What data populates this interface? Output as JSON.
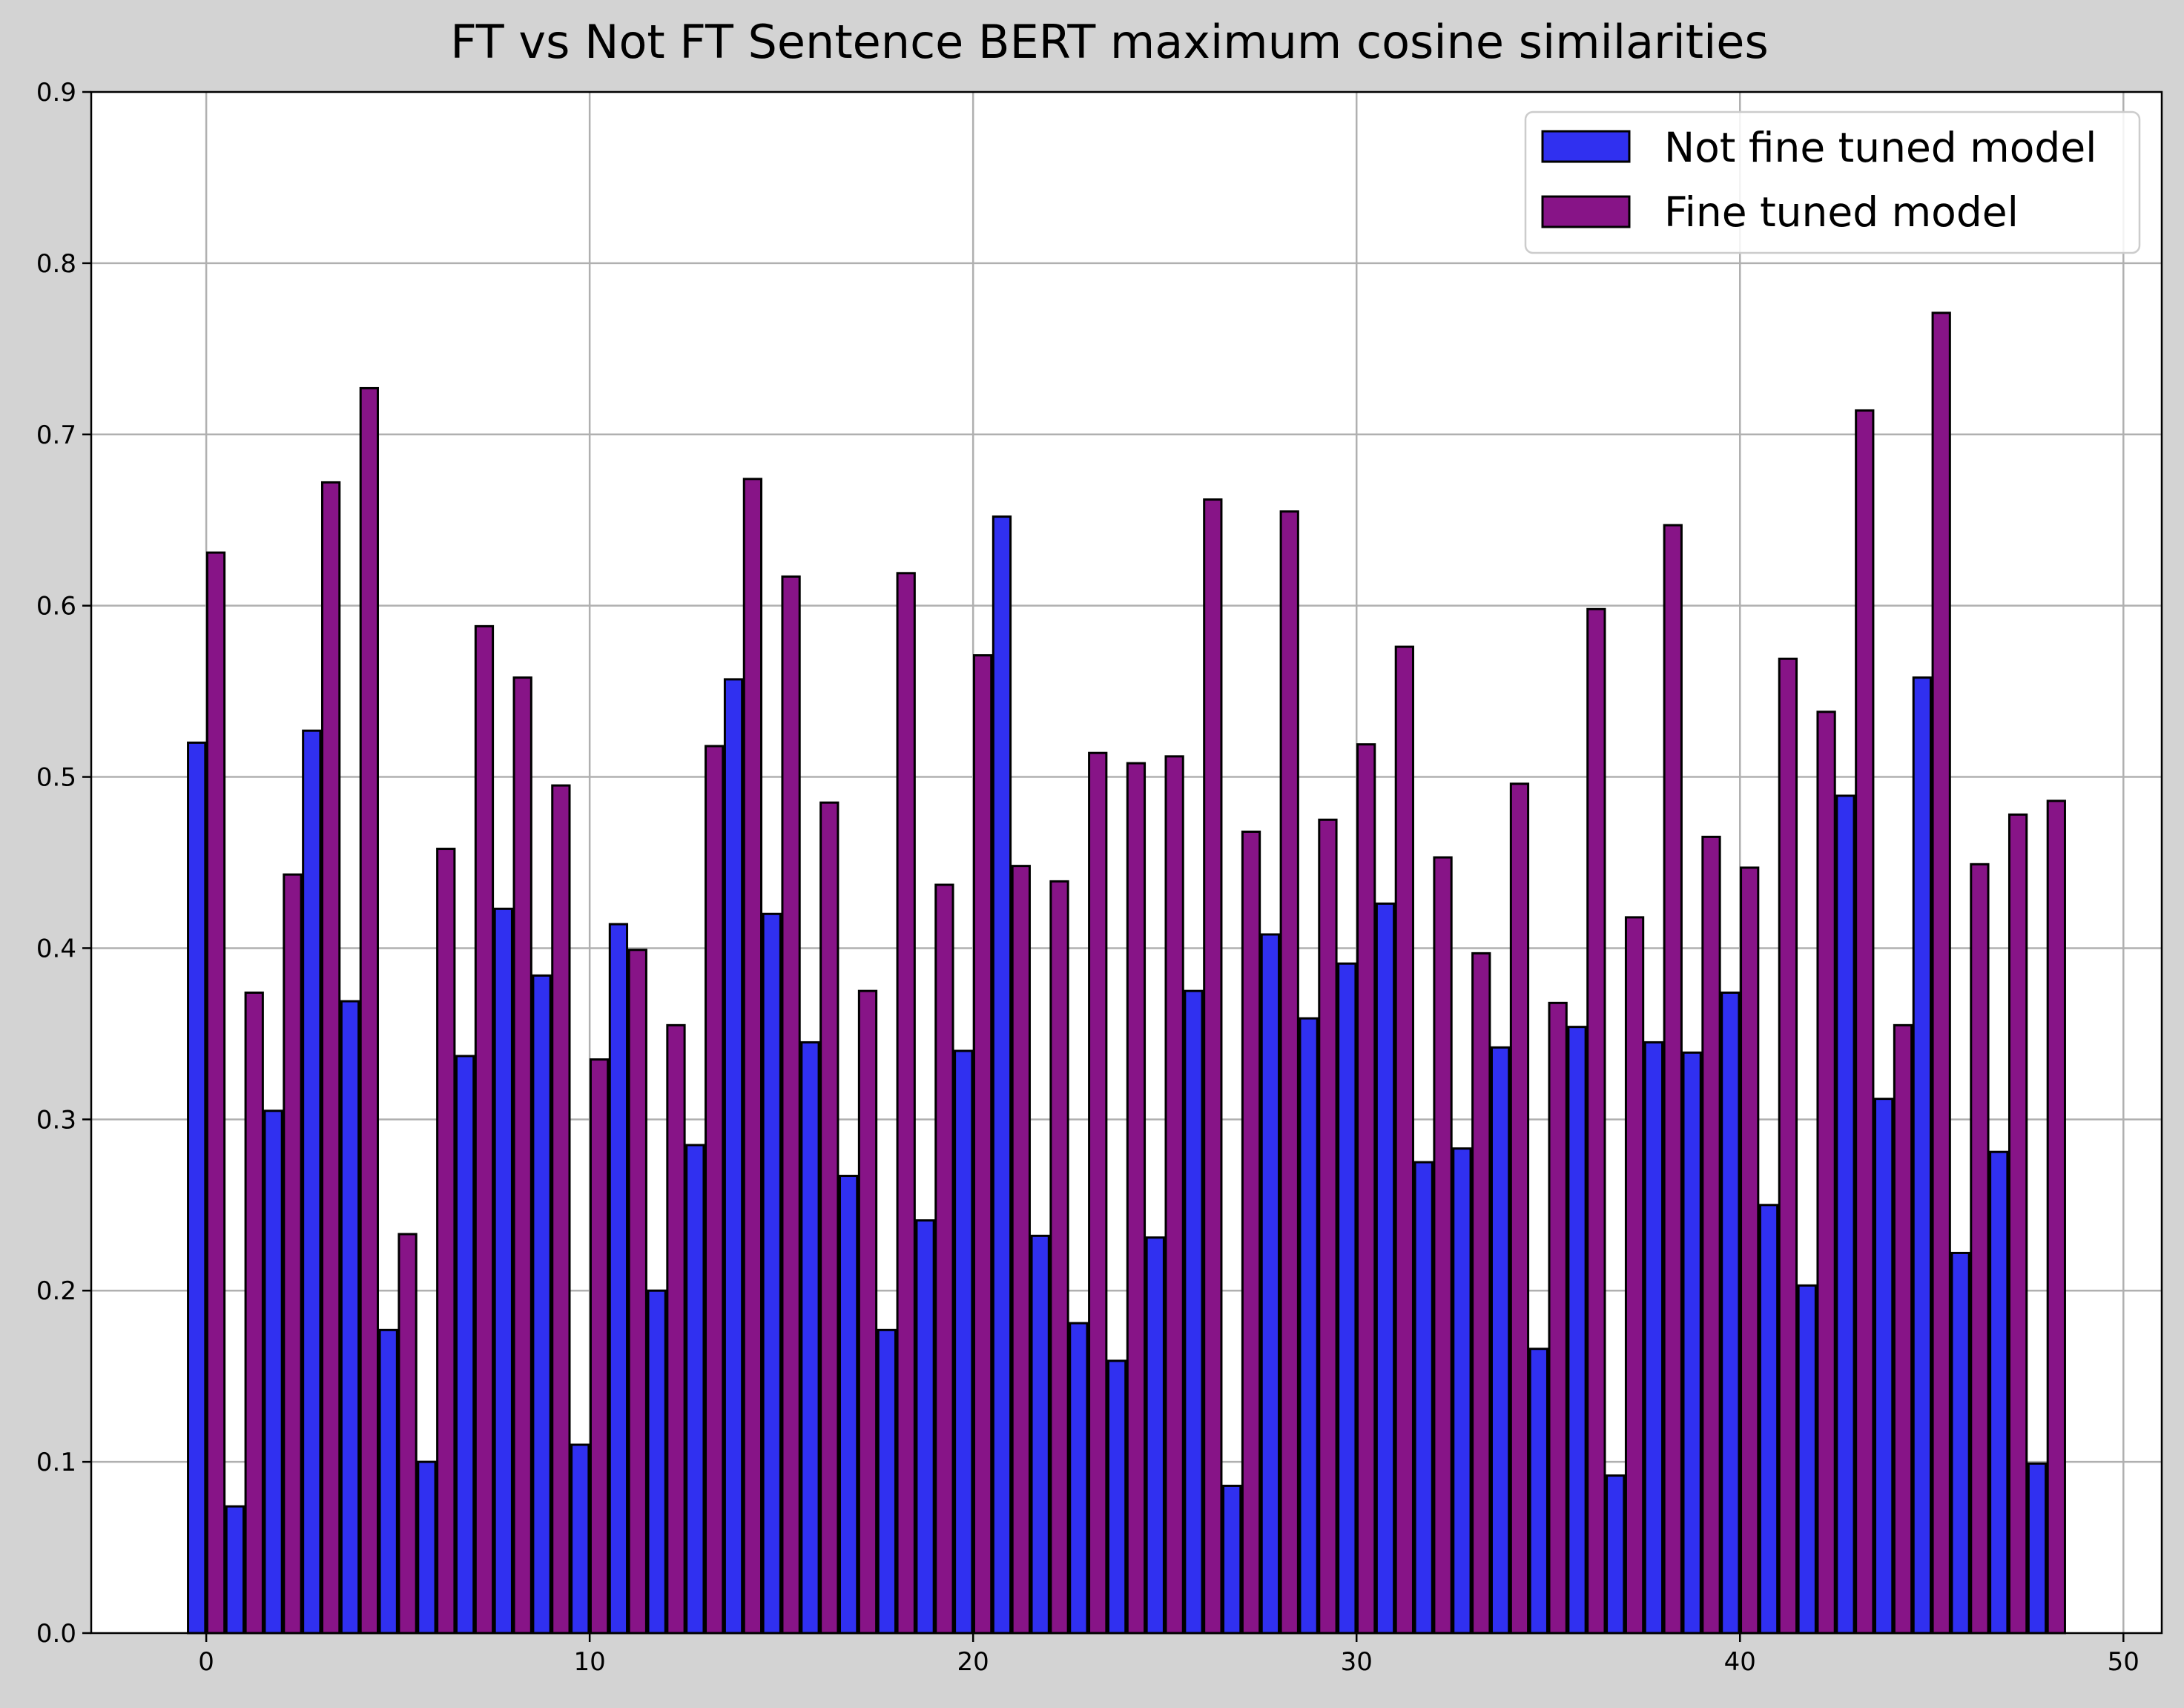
{
  "chart_data": {
    "type": "bar",
    "title": "FT vs Not FT Sentence BERT maximum cosine similarities",
    "xlabel": "",
    "ylabel": "",
    "xlim": [
      -3,
      51
    ],
    "ylim": [
      0,
      0.9
    ],
    "xticks": [
      0,
      10,
      20,
      30,
      40,
      50
    ],
    "xtick_labels": [
      "0",
      "10",
      "20",
      "30",
      "40",
      "50"
    ],
    "yticks": [
      0.0,
      0.1,
      0.2,
      0.3,
      0.4,
      0.5,
      0.6,
      0.7,
      0.8,
      0.9
    ],
    "ytick_labels": [
      "0.0",
      "0.1",
      "0.2",
      "0.3",
      "0.4",
      "0.5",
      "0.6",
      "0.7",
      "0.8",
      "0.9"
    ],
    "grid": true,
    "legend_position": "top-right",
    "x": [
      0,
      1,
      2,
      3,
      4,
      5,
      6,
      7,
      8,
      9,
      10,
      11,
      12,
      13,
      14,
      15,
      16,
      17,
      18,
      19,
      20,
      21,
      22,
      23,
      24,
      25,
      26,
      27,
      28,
      29,
      30,
      31,
      32,
      33,
      34,
      35,
      36,
      37,
      38,
      39,
      40,
      41,
      42,
      43,
      44,
      45,
      46,
      47,
      48
    ],
    "series": [
      {
        "name": "Not fine tuned model",
        "color": "#3030f0",
        "offset": -0.25,
        "values": [
          0.52,
          0.074,
          0.305,
          0.527,
          0.369,
          0.177,
          0.1,
          0.337,
          0.423,
          0.384,
          0.11,
          0.414,
          0.2,
          0.285,
          0.557,
          0.42,
          0.345,
          0.267,
          0.177,
          0.241,
          0.34,
          0.652,
          0.232,
          0.181,
          0.159,
          0.231,
          0.375,
          0.086,
          0.408,
          0.359,
          0.391,
          0.426,
          0.275,
          0.283,
          0.342,
          0.166,
          0.354,
          0.092,
          0.345,
          0.339,
          0.374,
          0.25,
          0.203,
          0.489,
          0.312,
          0.558,
          0.222,
          0.281,
          0.099
        ]
      },
      {
        "name": "Fine tuned model",
        "color": "#871487",
        "offset": 0.25,
        "values": [
          0.631,
          0.374,
          0.443,
          0.672,
          0.727,
          0.233,
          0.458,
          0.588,
          0.558,
          0.495,
          0.335,
          0.399,
          0.355,
          0.518,
          0.674,
          0.617,
          0.485,
          0.375,
          0.619,
          0.437,
          0.571,
          0.448,
          0.439,
          0.514,
          0.508,
          0.512,
          0.662,
          0.468,
          0.655,
          0.475,
          0.519,
          0.576,
          0.453,
          0.397,
          0.496,
          0.368,
          0.598,
          0.418,
          0.647,
          0.465,
          0.447,
          0.569,
          0.538,
          0.714,
          0.355,
          0.771,
          0.449,
          0.478,
          0.486
        ]
      }
    ]
  }
}
